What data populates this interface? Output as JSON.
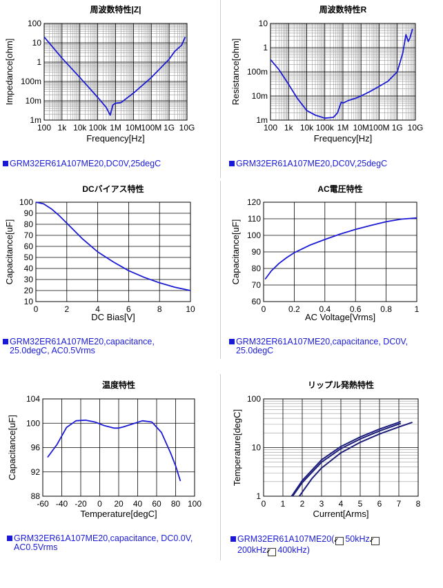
{
  "colors": {
    "curve": "#1a1ad6",
    "curve_dark": "#1c1c7a",
    "legend": "#1a1ad6",
    "grid_major": "#000000",
    "grid_minor": "#9a9a9a"
  },
  "chart_data": [
    {
      "id": "impedance",
      "type": "line",
      "title": "周波数特性|Z|",
      "xlabel": "Frequency[Hz]",
      "ylabel": "Impedance[ohm]",
      "xscale": "log",
      "yscale": "log",
      "xlim": [
        100,
        10000000000
      ],
      "ylim": [
        0.001,
        100
      ],
      "xticks": [
        100,
        1000,
        10000,
        100000,
        1000000,
        10000000,
        100000000,
        1000000000,
        10000000000
      ],
      "xticklabels": [
        "100",
        "1k",
        "10k",
        "100k",
        "1M",
        "10M",
        "100M",
        "1G",
        "10G"
      ],
      "yticks": [
        0.001,
        0.01,
        0.1,
        1,
        10,
        100
      ],
      "yticklabels": [
        "1m",
        "10m",
        "100m",
        "1",
        "10",
        "100"
      ],
      "grid": true,
      "series": [
        {
          "x": [
            100,
            1000,
            10000,
            100000,
            300000,
            500000,
            700000,
            1000000,
            2000000,
            10000000,
            100000000,
            1000000000,
            2000000000,
            5000000000,
            8000000000
          ],
          "y": [
            20,
            1.6,
            0.16,
            0.015,
            0.0045,
            0.0018,
            0.006,
            0.0075,
            0.008,
            0.025,
            0.16,
            1.4,
            3.5,
            7.5,
            20
          ]
        }
      ],
      "legend": "GRM32ER61A107ME20,DC0V,25degC"
    },
    {
      "id": "resistance",
      "type": "line",
      "title": "周波数特性R",
      "xlabel": "Frequency[Hz]",
      "ylabel": "Resistance[ohm]",
      "xscale": "log",
      "yscale": "log",
      "xlim": [
        100,
        10000000000
      ],
      "ylim": [
        0.001,
        10
      ],
      "xticks": [
        100,
        1000,
        10000,
        100000,
        1000000,
        10000000,
        100000000,
        1000000000,
        10000000000
      ],
      "xticklabels": [
        "100",
        "1k",
        "10k",
        "100k",
        "1M",
        "10M",
        "100M",
        "1G",
        "10G"
      ],
      "yticks": [
        0.001,
        0.01,
        0.1,
        1,
        10
      ],
      "yticklabels": [
        "1m",
        "10m",
        "100m",
        "1",
        "10"
      ],
      "grid": true,
      "series": [
        {
          "x": [
            100,
            300,
            1000,
            3000,
            10000,
            30000,
            100000,
            300000,
            500000,
            800000,
            1000000,
            2000000,
            5000000,
            10000000,
            30000000,
            100000000,
            300000000,
            1000000000,
            2000000000,
            3000000000,
            4000000000,
            5000000000,
            7000000000
          ],
          "y": [
            0.32,
            0.12,
            0.03,
            0.008,
            0.0025,
            0.0016,
            0.0012,
            0.0013,
            0.002,
            0.0055,
            0.005,
            0.0065,
            0.008,
            0.01,
            0.015,
            0.025,
            0.04,
            0.1,
            0.6,
            3.5,
            1.8,
            2.5,
            6
          ]
        }
      ],
      "legend": "GRM32ER61A107ME20,DC0V,25degC"
    },
    {
      "id": "dc_bias",
      "type": "line",
      "title": "DCバイアス特性",
      "xlabel": "DC Bias[V]",
      "ylabel": "Capacitance[uF]",
      "xlim": [
        0,
        10
      ],
      "ylim": [
        10,
        100
      ],
      "xticks": [
        0,
        2,
        4,
        6,
        8,
        10
      ],
      "yticks": [
        10,
        20,
        30,
        40,
        50,
        60,
        70,
        80,
        90,
        100
      ],
      "grid": true,
      "series": [
        {
          "x": [
            0,
            0.5,
            1,
            1.5,
            2,
            3,
            4,
            5,
            6,
            7,
            8,
            9,
            10
          ],
          "y": [
            100,
            98.5,
            94,
            88,
            81,
            67,
            55,
            46,
            38,
            32,
            27,
            23,
            20
          ]
        }
      ],
      "legend": "GRM32ER61A107ME20,capacitance, 25.0degC, AC0.5Vrms"
    },
    {
      "id": "ac_voltage",
      "type": "line",
      "title": "AC電圧特性",
      "xlabel": "AC Voltage[Vrms]",
      "ylabel": "Capacitance[uF]",
      "xlim": [
        0,
        1
      ],
      "ylim": [
        60,
        120
      ],
      "xticks": [
        0,
        0.2,
        0.4,
        0.6,
        0.8,
        1
      ],
      "yticks": [
        60,
        70,
        80,
        90,
        100,
        110,
        120
      ],
      "grid": true,
      "series": [
        {
          "x": [
            0.01,
            0.05,
            0.1,
            0.15,
            0.2,
            0.3,
            0.4,
            0.5,
            0.6,
            0.7,
            0.8,
            0.9,
            1.0
          ],
          "y": [
            73.5,
            78.5,
            83,
            86.5,
            89.5,
            94,
            97.5,
            100.8,
            103.6,
            106,
            108.2,
            109.8,
            110.5
          ]
        }
      ],
      "legend": "GRM32ER61A107ME20,capacitance, DC0V, 25.0degC"
    },
    {
      "id": "temperature",
      "type": "line",
      "title": "温度特性",
      "xlabel": "Temperature[degC]",
      "ylabel": "Capacitance[uF]",
      "xlim": [
        -60,
        100
      ],
      "ylim": [
        88,
        104
      ],
      "xticks": [
        -60,
        -40,
        -20,
        0,
        20,
        40,
        60,
        80,
        100
      ],
      "yticks": [
        88,
        92,
        96,
        100,
        104
      ],
      "grid": true,
      "series": [
        {
          "x": [
            -55,
            -45,
            -35,
            -25,
            -15,
            -5,
            5,
            15,
            20,
            25,
            35,
            45,
            55,
            65,
            75,
            80,
            85
          ],
          "y": [
            94.4,
            96.5,
            99.3,
            100.4,
            100.5,
            100.2,
            99.6,
            99.2,
            99.2,
            99.4,
            99.9,
            100.4,
            100.2,
            98.5,
            95,
            93,
            90.5
          ]
        }
      ],
      "legend": "GRM32ER61A107ME20,capacitance, DC0.0V, AC0.5Vrms"
    },
    {
      "id": "ripple",
      "type": "line",
      "title": "リップル発熱特性",
      "xlabel": "Current[Arms]",
      "ylabel": "Temperature[degC]",
      "xlim": [
        0,
        8
      ],
      "ylim": [
        1,
        100
      ],
      "yscale": "log",
      "xticks": [
        0,
        1,
        2,
        3,
        4,
        5,
        6,
        7,
        8
      ],
      "yticks": [
        1,
        10,
        100
      ],
      "grid": true,
      "series": [
        {
          "name": "50kHz",
          "x": [
            1.45,
            2,
            3,
            4,
            5,
            6,
            7,
            7.1
          ],
          "y": [
            1,
            2.1,
            5.6,
            10.5,
            16.5,
            24,
            33,
            34.5
          ]
        },
        {
          "name": "200kHz",
          "x": [
            1.5,
            2,
            3,
            4,
            5,
            6,
            7,
            7.1
          ],
          "y": [
            1,
            1.9,
            5.0,
            9.5,
            15,
            22,
            30.5,
            31.5
          ]
        },
        {
          "name": "400kHz",
          "x": [
            1.85,
            2.5,
            3,
            4,
            5,
            6,
            7,
            7.7
          ],
          "y": [
            1,
            2.3,
            3.8,
            7.8,
            12.8,
            19,
            26.5,
            33
          ]
        }
      ],
      "legend_prefix": "GRM32ER61A107ME20(",
      "legend_items": [
        "50kHz",
        "200kHz",
        "400kHz"
      ],
      "legend_suffix": ")"
    }
  ]
}
